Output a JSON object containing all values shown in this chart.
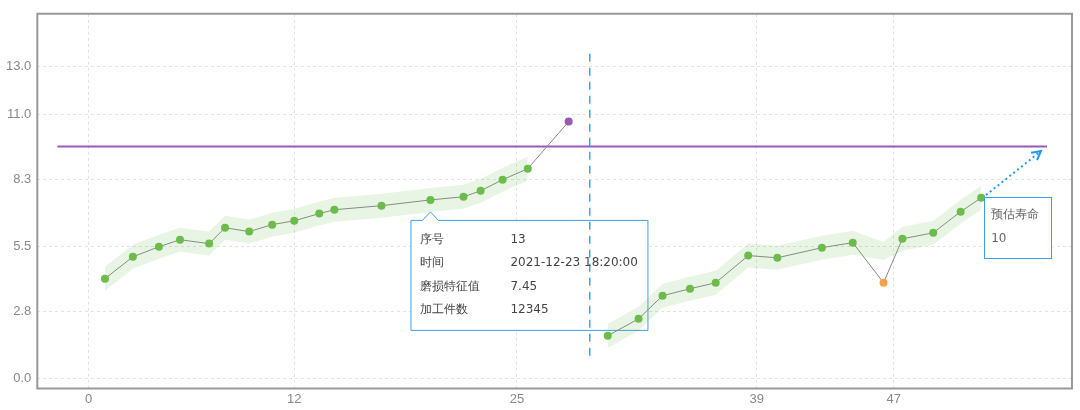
{
  "chart_data": {
    "type": "line",
    "x": [
      0.95,
      2.58,
      4.1,
      5.33,
      7.03,
      7.96,
      9.37,
      10.71,
      12,
      13.46,
      14.34,
      17.09,
      19.95,
      21.88,
      22.88,
      24.16,
      25.63,
      28.02,
      29.2,
      30.3,
      32.1,
      33.5,
      35.1,
      36.6,
      38.5,
      40.2,
      42.8,
      44.6,
      46.4,
      47.5,
      49.3,
      50.9,
      52.1
    ],
    "series": [
      {
        "color": "#888888",
        "colors": [
          "#6cbd4a",
          "#6cbd4a",
          "#6cbd4a",
          "#6cbd4a",
          "#6cbd4a",
          "#6cbd4a",
          "#6cbd4a",
          "#6cbd4a",
          "#6cbd4a",
          "#6cbd4a",
          "#6cbd4a",
          "#6cbd4a",
          "#6cbd4a",
          "#6cbd4a",
          "#6cbd4a",
          "#6cbd4a",
          "#6cbd4a",
          "#9b59b6",
          "#6cbd4a",
          "#6cbd4a",
          "#6cbd4a",
          "#6cbd4a",
          "#6cbd4a",
          "#6cbd4a",
          "#6cbd4a",
          "#6cbd4a",
          "#6cbd4a",
          "#6cbd4a",
          "#f5a04a",
          "#6cbd4a",
          "#6cbd4a",
          "#6cbd4a",
          "#6cbd4a"
        ],
        "values": [
          4.17,
          5.08,
          5.5,
          5.79,
          5.63,
          6.29,
          6.13,
          6.42,
          6.58,
          6.88,
          7.04,
          7.21,
          7.45,
          7.58,
          7.83,
          8.29,
          8.75,
          10.71,
          null,
          1.79,
          2.5,
          3.46,
          3.75,
          4.0,
          5.13,
          5.04,
          5.46,
          5.67,
          4.0,
          5.83,
          6.08,
          6.96,
          7.54
        ],
        "lower": [
          3.67,
          4.58,
          5.0,
          5.29,
          5.13,
          5.79,
          5.63,
          5.92,
          6.08,
          6.38,
          6.54,
          6.71,
          6.95,
          7.08,
          7.33,
          7.79,
          8.25,
          null,
          null,
          1.29,
          2.0,
          2.96,
          3.25,
          3.5,
          4.63,
          4.54,
          4.96,
          5.17,
          4.95,
          5.33,
          5.58,
          6.46,
          7.04
        ],
        "upper": [
          4.67,
          5.58,
          6.0,
          6.29,
          6.13,
          6.79,
          6.63,
          6.92,
          7.08,
          7.38,
          7.54,
          7.71,
          7.95,
          8.08,
          8.33,
          8.79,
          9.25,
          null,
          null,
          2.29,
          3.0,
          3.96,
          4.25,
          4.5,
          5.63,
          5.54,
          5.96,
          6.17,
          5.7,
          6.33,
          6.58,
          7.46,
          8.04
        ]
      }
    ],
    "xlim": [
      -3,
      57.4
    ],
    "xticks": [
      0,
      12,
      25,
      39,
      47
    ],
    "ylim": [
      -0.4,
      15.2
    ],
    "yticks": [
      {
        "value": 0,
        "label": "0.0"
      },
      2.8,
      5.5,
      8.3,
      {
        "value": 11,
        "label": "11.0"
      },
      {
        "value": 13,
        "label": "13.0"
      }
    ],
    "grid": true,
    "legend": false,
    "marker": "circle",
    "ref_lines": [
      {
        "axis": "y",
        "value": 9.67,
        "color": "#9b59b6",
        "line_style": "solid"
      },
      {
        "axis": "x",
        "value": 29.25,
        "color": "#1a9bf0",
        "line_style": "dashed"
      }
    ],
    "annotations": [
      {
        "text": "序号\t13\n时间\t2021-12-23 18:20:00\n磨损特征值\t7.45\n加工件数\t12345",
        "x": 19.95,
        "y": 7.45
      },
      {
        "text": "预估寿命\n10",
        "x": 55.6,
        "y": 9.5
      }
    ]
  }
}
